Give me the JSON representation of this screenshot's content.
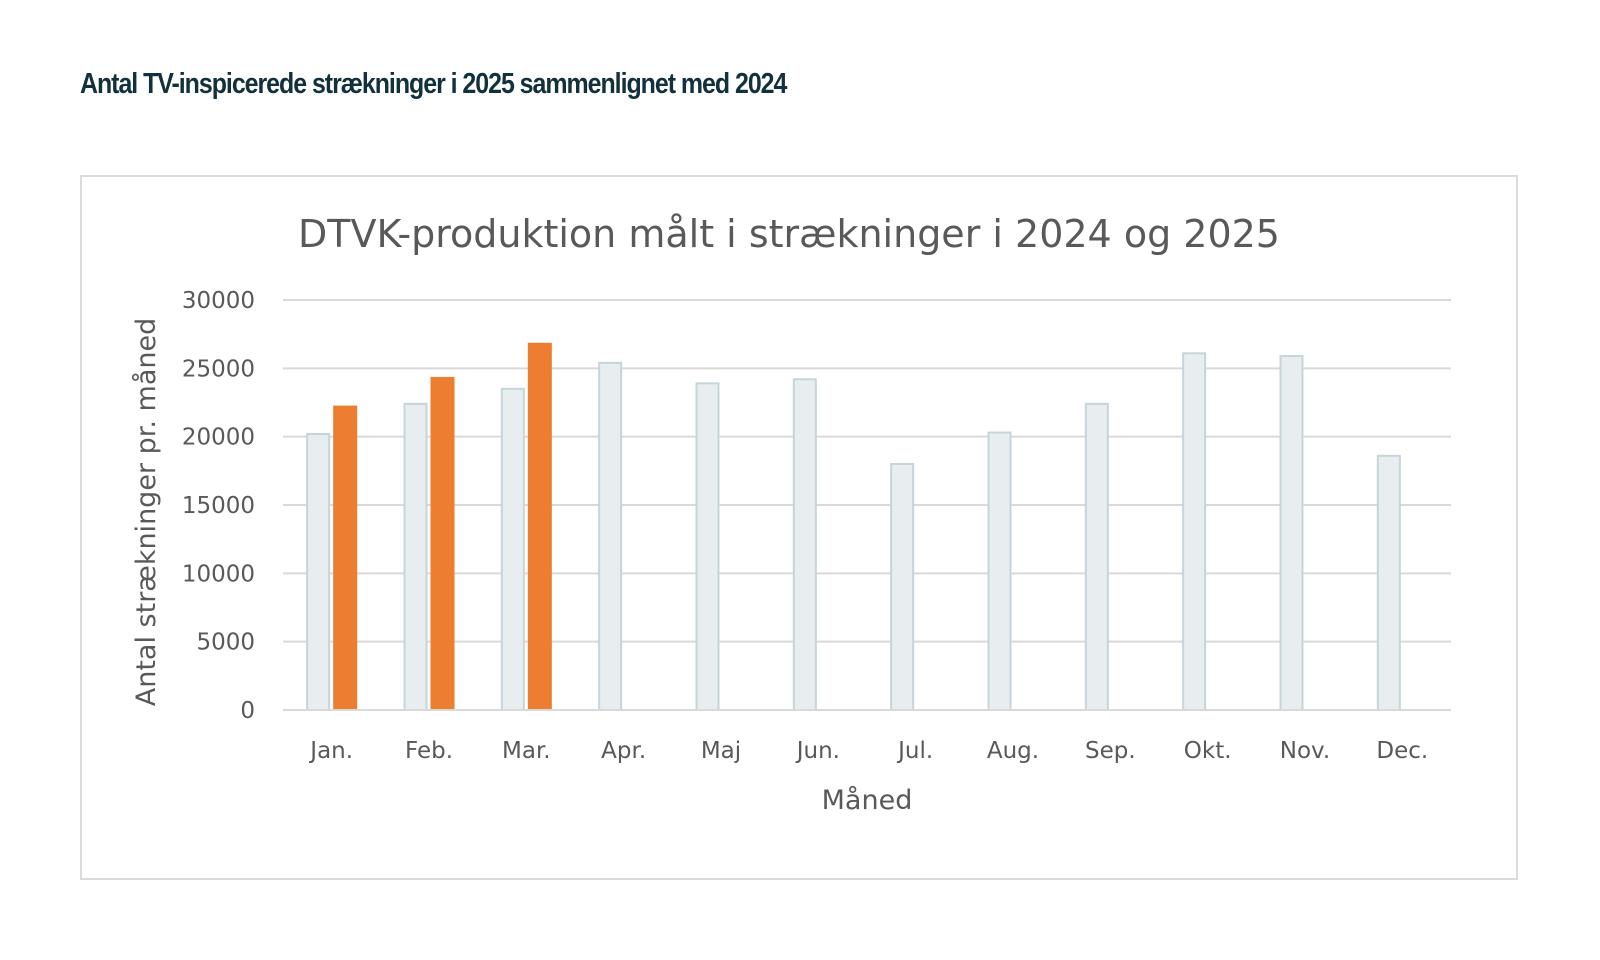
{
  "page": {
    "heading": "Antal TV-inspicerede strækninger i 2025 sammenlignet med 2024"
  },
  "chart_data": {
    "type": "bar",
    "title": "DTVK-produktion målt i strækninger i 2024 og 2025",
    "xlabel": "Måned",
    "ylabel": "Antal strækninger pr. måned",
    "ylim": [
      0,
      30000
    ],
    "yticks": [
      "0",
      "5000",
      "10000",
      "15000",
      "20000",
      "25000",
      "30000"
    ],
    "grid": true,
    "categories": [
      "Jan.",
      "Feb.",
      "Mar.",
      "Apr.",
      "Maj",
      "Jun.",
      "Jul.",
      "Aug.",
      "Sep.",
      "Okt.",
      "Nov.",
      "Dec."
    ],
    "series": [
      {
        "values": [
          20200,
          22400,
          23500,
          25400,
          23900,
          24200,
          18000,
          20300,
          22400,
          26100,
          25900,
          18600
        ],
        "color": "#e8eef0",
        "stroke": "#c5d5da"
      },
      {
        "values": [
          22200,
          24300,
          26800,
          null,
          null,
          null,
          null,
          null,
          null,
          null,
          null,
          null
        ],
        "color": "#ed7d31",
        "stroke": "#ed7d31"
      }
    ]
  }
}
